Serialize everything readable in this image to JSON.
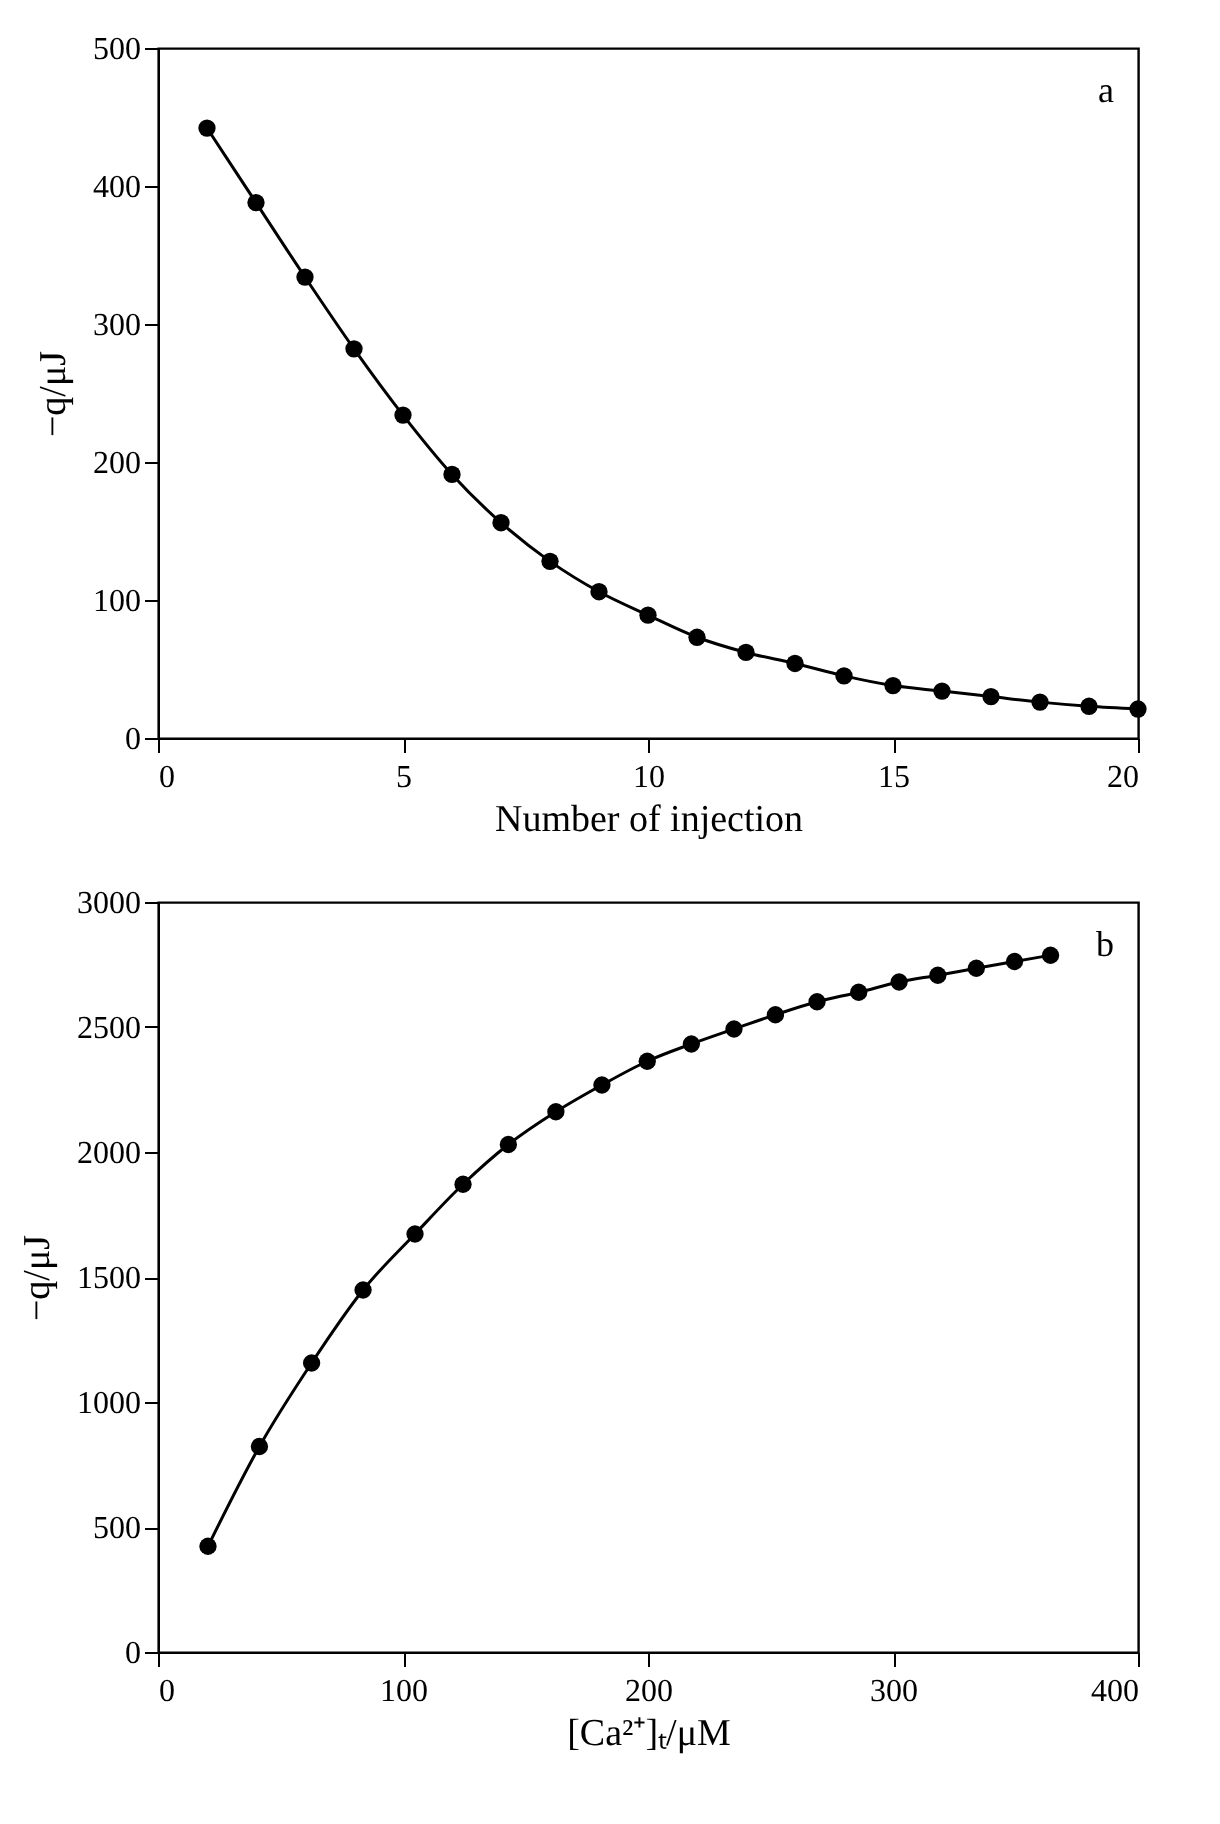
{
  "chart_data": [
    {
      "type": "line",
      "xlabel": "Number of injection",
      "ylabel": "−q/μJ",
      "annotations": [
        "a"
      ],
      "x": [
        1,
        2,
        3,
        4,
        5,
        6,
        7,
        8,
        9,
        10,
        11,
        12,
        13,
        14,
        15,
        16,
        17,
        18,
        19,
        20
      ],
      "series": [
        {
          "color": "#000000",
          "values": [
            442,
            388,
            334,
            282,
            234,
            191,
            156,
            128,
            106,
            89,
            73,
            62,
            54,
            45,
            38,
            34,
            30,
            26,
            23,
            21
          ]
        }
      ],
      "xlim": [
        0,
        20
      ],
      "xticks": [
        0,
        5,
        10,
        15,
        20
      ],
      "ylim": [
        0,
        500
      ],
      "yticks": [
        0,
        100,
        200,
        300,
        400,
        500
      ],
      "marker": "circle",
      "line_style": "solid",
      "grid": false
    },
    {
      "type": "line",
      "xlabel": "[Ca²⁺]ₜ/μM",
      "ylabel": "−q/μJ",
      "annotations": [
        "b"
      ],
      "x": [
        20.4,
        41.4,
        62.7,
        83.7,
        104.9,
        124.5,
        143,
        162.4,
        181.2,
        199.7,
        217.7,
        235.1,
        252,
        269,
        286,
        302.5,
        318.3,
        334,
        349.6,
        364.3
      ],
      "series": [
        {
          "color": "#000000",
          "values": [
            423,
            822,
            1156,
            1448,
            1672,
            1871,
            2030,
            2161,
            2268,
            2363,
            2432,
            2492,
            2549,
            2601,
            2639,
            2680,
            2707,
            2735,
            2762,
            2787
          ]
        }
      ],
      "xlim": [
        0,
        400
      ],
      "xticks": [
        0,
        100,
        200,
        300,
        400
      ],
      "ylim": [
        0,
        3000
      ],
      "yticks": [
        0,
        500,
        1000,
        1500,
        2000,
        2500,
        3000
      ],
      "marker": "circle",
      "line_style": "solid",
      "grid": false
    }
  ]
}
